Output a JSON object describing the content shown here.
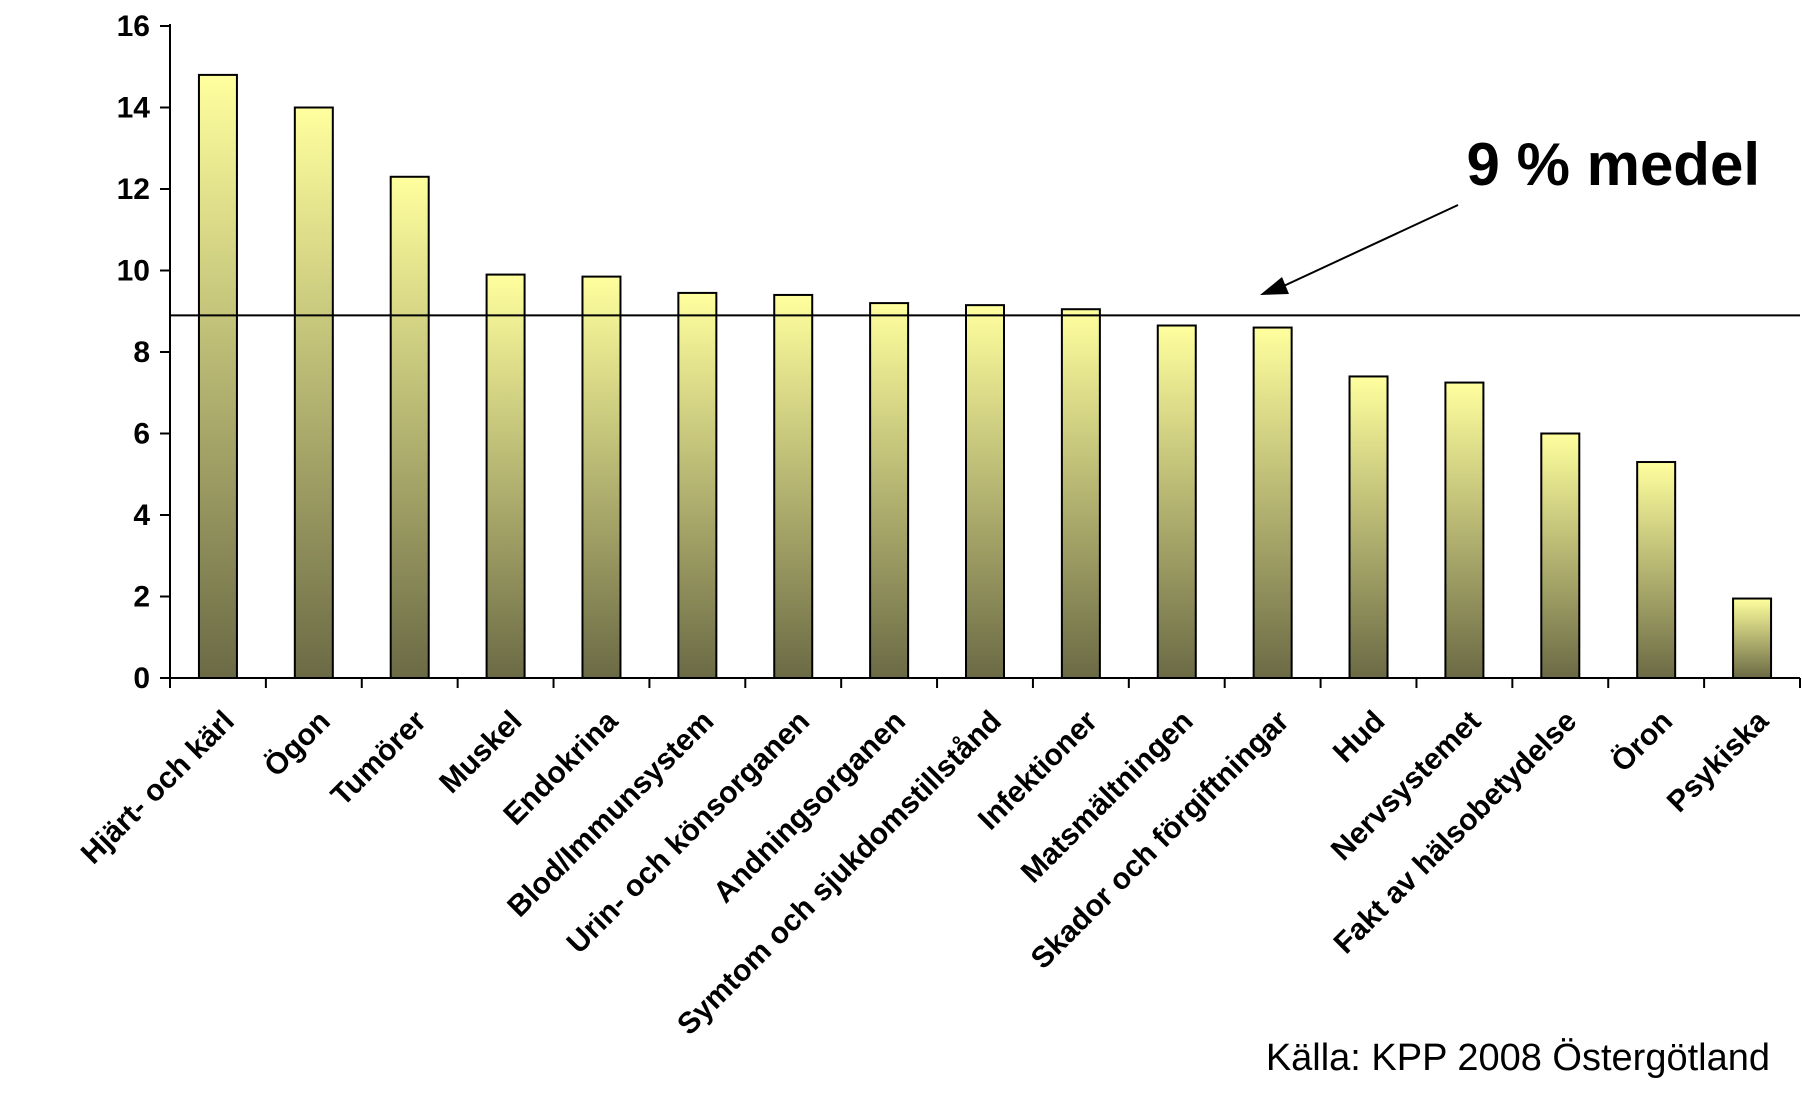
{
  "chart_data": {
    "type": "bar",
    "categories": [
      "Hjärt- och kärl",
      "Ögon",
      "Tumörer",
      "Muskel",
      "Endokrina",
      "Blod/Immunsystem",
      "Urin- och könsorganen",
      "Andningsorganen",
      "Symtom och sjukdomstillstånd",
      "Infektioner",
      "Matsmältningen",
      "Skador och förgiftningar",
      "Hud",
      "Nervsystemet",
      "Fakt av hälsobetydelse",
      "Öron",
      "Psykiska"
    ],
    "values": [
      14.8,
      14.0,
      12.3,
      9.9,
      9.85,
      9.45,
      9.4,
      9.2,
      9.15,
      9.05,
      8.65,
      8.6,
      7.4,
      7.25,
      6.0,
      5.3,
      1.95
    ],
    "yticks": [
      "0",
      "2",
      "4",
      "6",
      "8",
      "10",
      "12",
      "14",
      "16"
    ],
    "ylim": [
      0,
      16
    ],
    "reference_line": {
      "value": 8.9,
      "label": "9 % medel"
    },
    "source": "Källa: KPP 2008 Östergötland",
    "bar_gradient": {
      "top": "#ffff9e",
      "bottom": "#6b6a45"
    },
    "grid": false,
    "legend": "none"
  }
}
